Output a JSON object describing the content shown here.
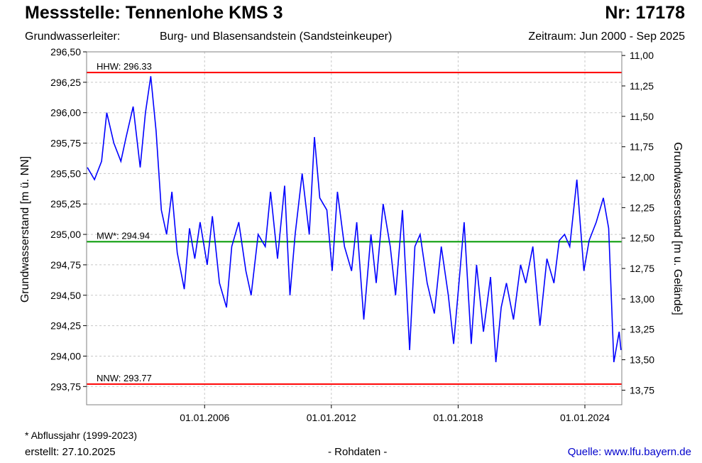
{
  "header": {
    "title": "Messstelle: Tennenlohe KMS 3",
    "number": "Nr: 17178",
    "aquifer_label": "Grundwasserleiter:",
    "aquifer_value": "Burg- und Blasensandstein (Sandsteinkeuper)",
    "period": "Zeitraum: Jun 2000 - Sep 2025"
  },
  "footer": {
    "footnote": "* Abflussjahr (1999-2023)",
    "created": "erstellt:  27.10.2025",
    "rawdata": "- Rohdaten -",
    "source": "Quelle: www.lfu.bayern.de"
  },
  "colors": {
    "series": "#0000ff",
    "hhw": "#ff0000",
    "nnw": "#ff0000",
    "mw": "#009900",
    "grid": "#c8c8c8",
    "frame": "#808080"
  },
  "chart_data": {
    "type": "line",
    "ylabel_left": "Grundwasserstand [m ü. NN]",
    "ylabel_right": "Grundwasserstand [m u. Gelände]",
    "x_ticks": [
      "01.01.2006",
      "01.01.2012",
      "01.01.2018",
      "01.01.2024"
    ],
    "y_ticks_left": [
      "296,50",
      "296,25",
      "296,00",
      "295,75",
      "295,50",
      "295,25",
      "295,00",
      "294,75",
      "294,50",
      "294,25",
      "294,00",
      "293,75"
    ],
    "y_ticks_right": [
      "11,00",
      "11,25",
      "11,50",
      "11,75",
      "12,00",
      "12,25",
      "12,50",
      "12,75",
      "13,00",
      "13,25",
      "13,50",
      "13,75"
    ],
    "xlim": [
      "2000-06-01",
      "2025-09-30"
    ],
    "ylim_left": [
      293.6,
      296.5
    ],
    "ylim_right_reversed": [
      13.87,
      10.97
    ],
    "grid": true,
    "reference_lines": [
      {
        "label": "HHW: 296.33",
        "value": 296.33
      },
      {
        "label": "MW*: 294.94",
        "value": 294.94
      },
      {
        "label": "NNW: 293.77",
        "value": 293.77
      }
    ],
    "series": [
      {
        "x": [
          "2000-06",
          "2000-10",
          "2001-02",
          "2001-05",
          "2001-09",
          "2002-01",
          "2002-04",
          "2002-08",
          "2002-12",
          "2003-03",
          "2003-06",
          "2003-09",
          "2003-12",
          "2004-03",
          "2004-06",
          "2004-09",
          "2005-01",
          "2005-04",
          "2005-07",
          "2005-10",
          "2006-02",
          "2006-05",
          "2006-09",
          "2007-01",
          "2007-04",
          "2007-08",
          "2007-12",
          "2008-03",
          "2008-07",
          "2008-11",
          "2009-02",
          "2009-06",
          "2009-10",
          "2010-01",
          "2010-04",
          "2010-08",
          "2010-12",
          "2011-03",
          "2011-06",
          "2011-10",
          "2012-01",
          "2012-04",
          "2012-08",
          "2012-12",
          "2013-03",
          "2013-07",
          "2013-11",
          "2014-02",
          "2014-06",
          "2014-10",
          "2015-01",
          "2015-05",
          "2015-09",
          "2015-12",
          "2016-03",
          "2016-07",
          "2016-11",
          "2017-03",
          "2017-07",
          "2017-10",
          "2018-01",
          "2018-04",
          "2018-08",
          "2018-11",
          "2019-03",
          "2019-07",
          "2019-10",
          "2020-01",
          "2020-04",
          "2020-08",
          "2020-12",
          "2021-03",
          "2021-07",
          "2021-11",
          "2022-03",
          "2022-07",
          "2022-10",
          "2023-01",
          "2023-04",
          "2023-08",
          "2023-12",
          "2024-03",
          "2024-07",
          "2024-11",
          "2025-02",
          "2025-05",
          "2025-08",
          "2025-09"
        ],
        "y": [
          295.55,
          295.45,
          295.6,
          296.0,
          295.75,
          295.6,
          295.8,
          296.05,
          295.55,
          296.0,
          296.3,
          295.85,
          295.2,
          295.0,
          295.35,
          294.85,
          294.55,
          295.05,
          294.8,
          295.1,
          294.75,
          295.15,
          294.6,
          294.4,
          294.9,
          295.1,
          294.7,
          294.5,
          295.0,
          294.9,
          295.35,
          294.8,
          295.4,
          294.5,
          295.0,
          295.5,
          295.0,
          295.8,
          295.3,
          295.2,
          294.7,
          295.35,
          294.9,
          294.7,
          295.1,
          294.3,
          295.0,
          294.6,
          295.25,
          294.9,
          294.5,
          295.2,
          294.05,
          294.9,
          295.0,
          294.6,
          294.35,
          294.9,
          294.5,
          294.1,
          294.6,
          295.1,
          294.1,
          294.75,
          294.2,
          294.65,
          293.95,
          294.4,
          294.6,
          294.3,
          294.75,
          294.6,
          294.9,
          294.25,
          294.8,
          294.6,
          294.95,
          295.0,
          294.9,
          295.45,
          294.7,
          294.95,
          295.1,
          295.3,
          295.05,
          293.95,
          294.2,
          294.05
        ]
      }
    ]
  }
}
